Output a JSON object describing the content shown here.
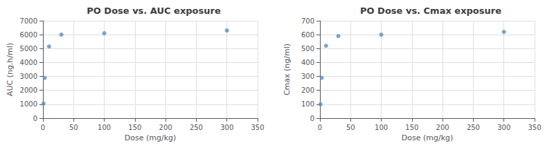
{
  "chart_data": [
    {
      "type": "scatter",
      "title": "PO Dose vs. AUC exposure",
      "xlabel": "Dose (mg/kg)",
      "ylabel": "AUC (ng.h/ml)",
      "x": [
        1,
        3,
        10,
        30,
        100,
        300
      ],
      "values": [
        1050,
        2900,
        5150,
        6000,
        6100,
        6300
      ],
      "color": "#5b8db8",
      "xlim": [
        0,
        350
      ],
      "ylim": [
        0,
        7000
      ],
      "xticks": [
        0,
        50,
        100,
        150,
        200,
        250,
        300,
        350
      ],
      "yticks": [
        0,
        1000,
        2000,
        3000,
        4000,
        5000,
        6000,
        7000
      ],
      "grid": true
    },
    {
      "type": "scatter",
      "title": "PO Dose vs. Cmax exposure",
      "xlabel": "Dose (mg/kg)",
      "ylabel": "Cmax (ng/ml)",
      "x": [
        1,
        3,
        10,
        30,
        100,
        300
      ],
      "values": [
        100,
        290,
        520,
        590,
        600,
        620
      ],
      "color": "#5b8db8",
      "xlim": [
        0,
        350
      ],
      "ylim": [
        0,
        700
      ],
      "xticks": [
        0,
        50,
        100,
        150,
        200,
        250,
        300,
        350
      ],
      "yticks": [
        0,
        100,
        200,
        300,
        400,
        500,
        600,
        700
      ],
      "grid": true
    }
  ]
}
